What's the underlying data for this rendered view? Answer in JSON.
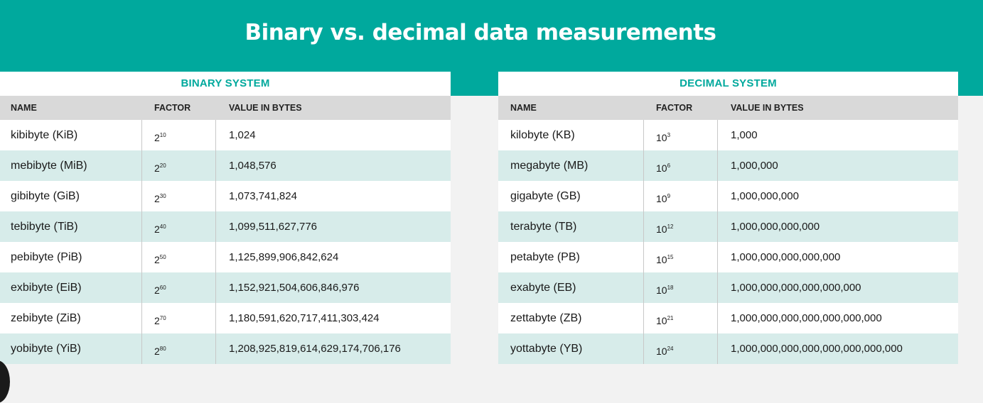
{
  "title": "Binary vs. decimal data measurements",
  "colors": {
    "accent": "#00a99d",
    "header_bg": "#d9d9d9",
    "alt_row": "#d7ecea"
  },
  "binary": {
    "heading": "BINARY SYSTEM",
    "columns": [
      "NAME",
      "FACTOR",
      "VALUE IN BYTES"
    ],
    "rows": [
      {
        "name": "kibibyte (KiB)",
        "base": "2",
        "exp": "10",
        "value": "1,024"
      },
      {
        "name": "mebibyte (MiB)",
        "base": "2",
        "exp": "20",
        "value": "1,048,576"
      },
      {
        "name": "gibibyte (GiB)",
        "base": "2",
        "exp": "30",
        "value": "1,073,741,824"
      },
      {
        "name": "tebibyte (TiB)",
        "base": "2",
        "exp": "40",
        "value": "1,099,511,627,776"
      },
      {
        "name": "pebibyte (PiB)",
        "base": "2",
        "exp": "50",
        "value": "1,125,899,906,842,624"
      },
      {
        "name": "exbibyte (EiB)",
        "base": "2",
        "exp": "60",
        "value": "1,152,921,504,606,846,976"
      },
      {
        "name": "zebibyte (ZiB)",
        "base": "2",
        "exp": "70",
        "value": "1,180,591,620,717,411,303,424"
      },
      {
        "name": "yobibyte (YiB)",
        "base": "2",
        "exp": "80",
        "value": "1,208,925,819,614,629,174,706,176"
      }
    ]
  },
  "decimal": {
    "heading": "DECIMAL SYSTEM",
    "columns": [
      "NAME",
      "FACTOR",
      "VALUE IN BYTES"
    ],
    "rows": [
      {
        "name": "kilobyte (KB)",
        "base": "10",
        "exp": "3",
        "value": "1,000"
      },
      {
        "name": "megabyte (MB)",
        "base": "10",
        "exp": "6",
        "value": "1,000,000"
      },
      {
        "name": "gigabyte (GB)",
        "base": "10",
        "exp": "9",
        "value": "1,000,000,000"
      },
      {
        "name": "terabyte (TB)",
        "base": "10",
        "exp": "12",
        "value": "1,000,000,000,000"
      },
      {
        "name": "petabyte (PB)",
        "base": "10",
        "exp": "15",
        "value": "1,000,000,000,000,000"
      },
      {
        "name": "exabyte (EB)",
        "base": "10",
        "exp": "18",
        "value": "1,000,000,000,000,000,000"
      },
      {
        "name": "zettabyte (ZB)",
        "base": "10",
        "exp": "21",
        "value": "1,000,000,000,000,000,000,000"
      },
      {
        "name": "yottabyte (YB)",
        "base": "10",
        "exp": "24",
        "value": "1,000,000,000,000,000,000,000,000"
      }
    ]
  }
}
